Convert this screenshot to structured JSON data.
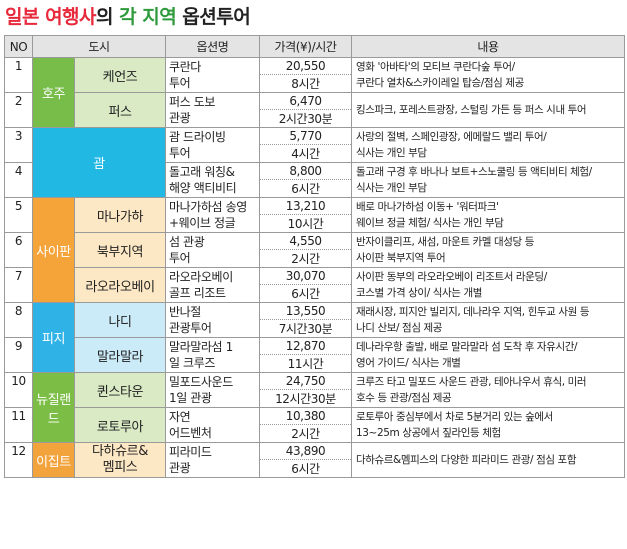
{
  "title": {
    "part1": "일본 여행사",
    "part2": "의 ",
    "part3": "각 지역",
    "part4": " 옵션투어"
  },
  "headers": [
    "NO",
    "도시",
    "옵션명",
    "가격(¥)/시간",
    "내용"
  ],
  "regions": {
    "au": "호주",
    "guam": "괌",
    "saipan": "사이판",
    "fiji": "피지",
    "nz": "뉴질랜드",
    "eg": "이집트"
  },
  "rows": [
    {
      "no": "1",
      "city": "케언즈",
      "name": [
        "쿠란다",
        "투어"
      ],
      "price": "20,550",
      "time": "8시간",
      "desc": [
        "영화 '아바타'의 모티브 쿠란다숲 투어/",
        "쿠란다 열차&스카이레일 탑승/점심 제공"
      ]
    },
    {
      "no": "2",
      "city": "퍼스",
      "name": [
        "퍼스 도보",
        "관광"
      ],
      "price": "6,470",
      "time": "2시간30분",
      "desc": [
        "킹스파크, 포레스트광장, 스털링 가든 등 퍼스 시내 투어",
        ""
      ]
    },
    {
      "no": "3",
      "city": "",
      "name": [
        "괌 드라이빙",
        "투어"
      ],
      "price": "5,770",
      "time": "4시간",
      "desc": [
        "사랑의 절벽, 스페인광장, 에메랄드 밸리 투어/",
        "식사는 개인 부담"
      ]
    },
    {
      "no": "4",
      "city": "",
      "name": [
        "돌고래 워칭&",
        "해양 액티비티"
      ],
      "price": "8,800",
      "time": "6시간",
      "desc": [
        "돌고래 구경 후 바나나 보트+스노쿨링 등 액티비티 체험/",
        "식사는 개인 부담"
      ]
    },
    {
      "no": "5",
      "city": "마나가하",
      "name": [
        "마나가하섬 송영",
        "+웨이브 정글"
      ],
      "price": "13,210",
      "time": "10시간",
      "desc": [
        "배로 마나가하섬 이동+ '워터파크'",
        "웨이브 정글 체험/ 식사는 개인 부담"
      ]
    },
    {
      "no": "6",
      "city": "북부지역",
      "name": [
        "섬 관광",
        "투어"
      ],
      "price": "4,550",
      "time": "2시간",
      "desc": [
        "반자이클리프, 새섬, 마운트 카멜 대성당 등",
        "사이판 북부지역 투어"
      ]
    },
    {
      "no": "7",
      "city": "라오라오베이",
      "name": [
        "라오라오베이",
        "골프 리조트"
      ],
      "price": "30,070",
      "time": "6시간",
      "desc": [
        "사이판 동부의 라오라오베이 리조트서 라운딩/",
        "코스별 가격 상이/ 식사는 개별"
      ]
    },
    {
      "no": "8",
      "city": "나디",
      "name": [
        "반나절",
        "관광투어"
      ],
      "price": "13,550",
      "time": "7시간30분",
      "desc": [
        "재래시장, 피지안 빌리지, 데나라우 지역, 힌두교 사원 등",
        "나디 산보/ 점심 제공"
      ]
    },
    {
      "no": "9",
      "city": "말라말라",
      "name": [
        "말라말라섬 1",
        "일 크루즈"
      ],
      "price": "12,870",
      "time": "11시간",
      "desc": [
        "데나라우항 출발, 배로 말라말라 섬 도착 후 자유시간/",
        "영어 가이드/ 식사는 개별"
      ]
    },
    {
      "no": "10",
      "city": "퀸스타운",
      "name": [
        "밀포드사운드",
        "1일 관광"
      ],
      "price": "24,750",
      "time": "12시간30분",
      "desc": [
        "크루즈 타고 밀포드 사운드 관광, 테아나우서 휴식, 미러",
        "호수 등 관광/점심 제공"
      ]
    },
    {
      "no": "11",
      "city": "로토루아",
      "name": [
        "자연",
        "어드벤처"
      ],
      "price": "10,380",
      "time": "2시간",
      "desc": [
        "로토루아 중심부에서 차로 5분거리 있는 숲에서",
        "13~25m 상공에서 짚라인등 체험"
      ]
    },
    {
      "no": "12",
      "city": "다하슈르&\n멤피스",
      "name": [
        "피라미드",
        "관광"
      ],
      "price": "43,890",
      "time": "6시간",
      "desc": [
        "다하슈르&멤피스의 다양한 피라미드 관광/ 점심 포함",
        ""
      ]
    }
  ]
}
